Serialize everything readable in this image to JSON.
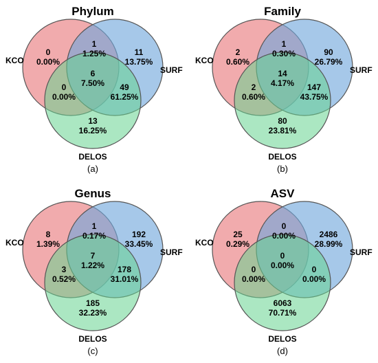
{
  "panels": [
    {
      "title": "Phylum",
      "label": "(a)",
      "sets": {
        "a": "KCO",
        "b": "SURF",
        "c": "DELOS"
      },
      "regions": {
        "a_only": {
          "count": "0",
          "percent": "0.00%"
        },
        "b_only": {
          "count": "11",
          "percent": "13.75%"
        },
        "c_only": {
          "count": "13",
          "percent": "16.25%"
        },
        "ab": {
          "count": "1",
          "percent": "1.25%"
        },
        "ac": {
          "count": "0",
          "percent": "0.00%"
        },
        "bc": {
          "count": "49",
          "percent": "61.25%"
        },
        "abc": {
          "count": "6",
          "percent": "7.50%"
        }
      }
    },
    {
      "title": "Family",
      "label": "(b)",
      "sets": {
        "a": "KCO",
        "b": "SURF",
        "c": "DELOS"
      },
      "regions": {
        "a_only": {
          "count": "2",
          "percent": "0.60%"
        },
        "b_only": {
          "count": "90",
          "percent": "26.79%"
        },
        "c_only": {
          "count": "80",
          "percent": "23.81%"
        },
        "ab": {
          "count": "1",
          "percent": "0.30%"
        },
        "ac": {
          "count": "2",
          "percent": "0.60%"
        },
        "bc": {
          "count": "147",
          "percent": "43.75%"
        },
        "abc": {
          "count": "14",
          "percent": "4.17%"
        }
      }
    },
    {
      "title": "Genus",
      "label": "(c)",
      "sets": {
        "a": "KCO",
        "b": "SURF",
        "c": "DELOS"
      },
      "regions": {
        "a_only": {
          "count": "8",
          "percent": "1.39%"
        },
        "b_only": {
          "count": "192",
          "percent": "33.45%"
        },
        "c_only": {
          "count": "185",
          "percent": "32.23%"
        },
        "ab": {
          "count": "1",
          "percent": "0.17%"
        },
        "ac": {
          "count": "3",
          "percent": "0.52%"
        },
        "bc": {
          "count": "178",
          "percent": "31.01%"
        },
        "abc": {
          "count": "7",
          "percent": "1.22%"
        }
      }
    },
    {
      "title": "ASV",
      "label": "(d)",
      "sets": {
        "a": "KCO",
        "b": "SURF",
        "c": "DELOS"
      },
      "regions": {
        "a_only": {
          "count": "25",
          "percent": "0.29%"
        },
        "b_only": {
          "count": "2486",
          "percent": "28.99%"
        },
        "c_only": {
          "count": "6063",
          "percent": "70.71%"
        },
        "ab": {
          "count": "0",
          "percent": "0.00%"
        },
        "ac": {
          "count": "0",
          "percent": "0.00%"
        },
        "bc": {
          "count": "0",
          "percent": "0.00%"
        },
        "abc": {
          "count": "0",
          "percent": "0.00%"
        }
      }
    }
  ],
  "colors": {
    "kco": "#e8787a",
    "surf": "#6fa6dc",
    "delos": "#66d48f",
    "outline": "#555555"
  }
}
